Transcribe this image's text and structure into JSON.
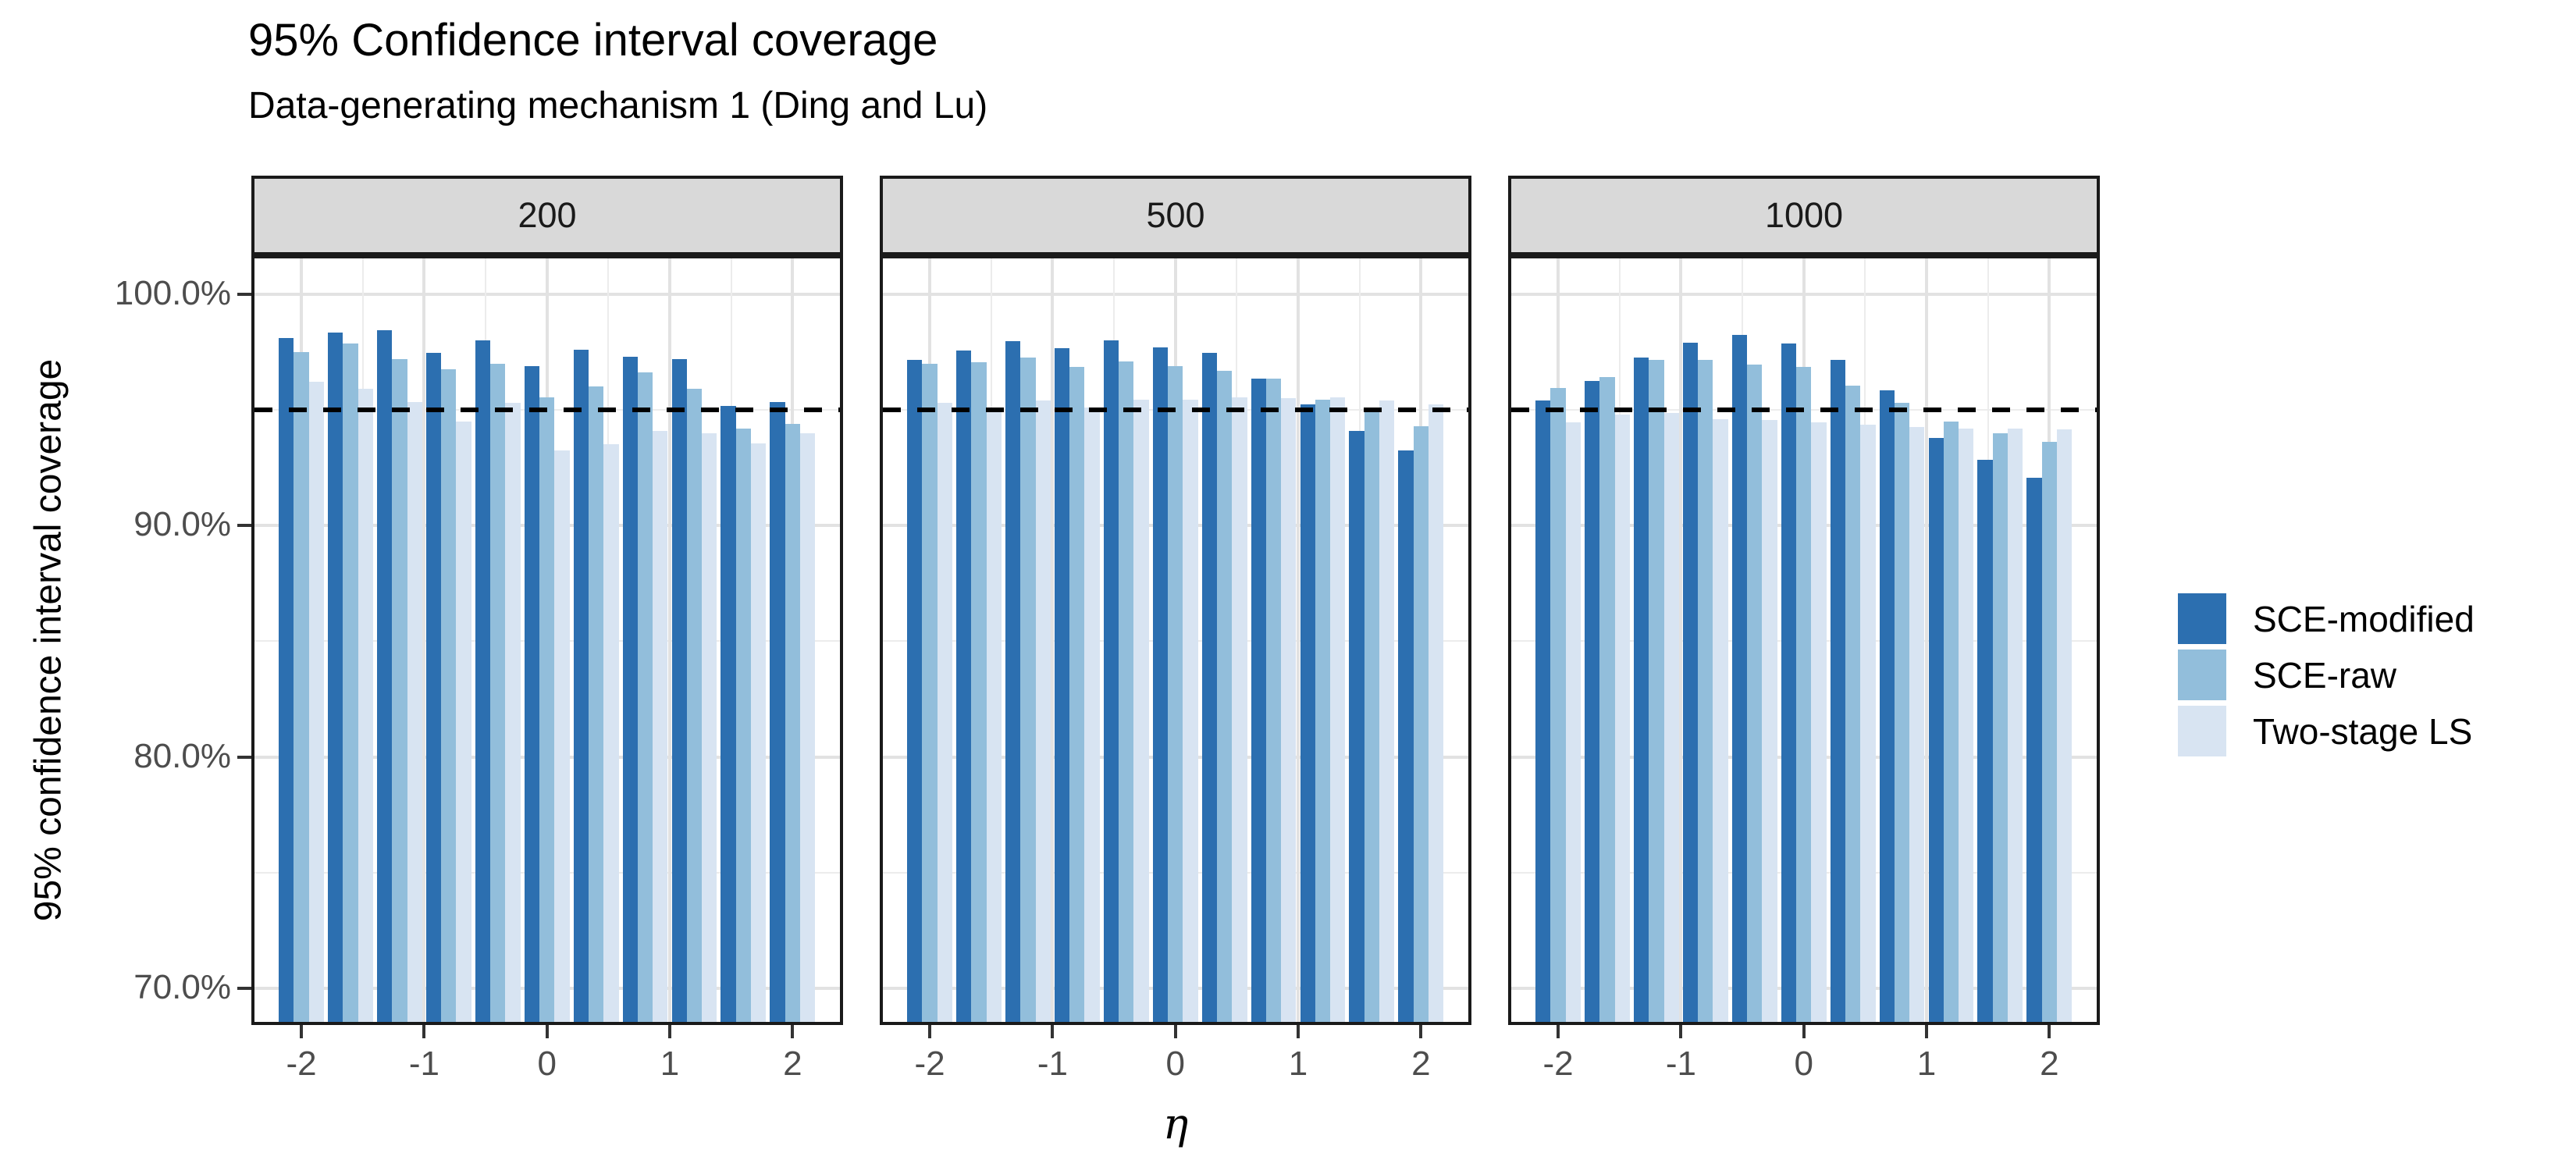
{
  "chart_data": {
    "type": "bar",
    "title": "95% Confidence interval coverage",
    "subtitle": "Data-generating mechanism 1 (Ding and Lu)",
    "xlabel": "η",
    "ylabel": "95% confidence interval coverage",
    "legend_position": "right",
    "grid": true,
    "facet_variable_values": [
      "200",
      "500",
      "1000"
    ],
    "x": [
      -2,
      -1.6,
      -1.2,
      -0.8,
      -0.4,
      0,
      0.4,
      0.8,
      1.2,
      1.6,
      2
    ],
    "x_tick_values": [
      -2,
      -1,
      0,
      1,
      2
    ],
    "x_tick_labels": [
      "-2",
      "-1",
      "0",
      "1",
      "2"
    ],
    "x_minor_values": [
      -1.5,
      -0.5,
      0.5,
      1.5
    ],
    "y_tick_values": [
      100,
      90,
      80,
      70
    ],
    "y_tick_labels": [
      "100.0%",
      "90.0%",
      "80.0%",
      "70.0%"
    ],
    "y_minor_values": [
      95,
      85,
      75
    ],
    "ylim": [
      68.6,
      101.5
    ],
    "reference_line": 95,
    "series_names": [
      "SCE-modified",
      "SCE-raw",
      "Two-stage LS"
    ],
    "series_colors": [
      "#2c6fb0",
      "#92bedb",
      "#d8e4f2"
    ],
    "facets": [
      {
        "label": "200",
        "values": [
          [
            98.1,
            98.35,
            98.45,
            97.45,
            98.0,
            96.9,
            97.6,
            97.3,
            97.2,
            95.15,
            95.35
          ],
          [
            97.5,
            97.85,
            97.2,
            96.75,
            97.0,
            95.55,
            96.0,
            96.6,
            95.9,
            94.2,
            94.4
          ],
          [
            96.2,
            95.9,
            95.35,
            94.5,
            95.3,
            93.25,
            93.5,
            94.1,
            94.0,
            93.55,
            94.0
          ]
        ]
      },
      {
        "label": "500",
        "values": [
          [
            97.15,
            97.55,
            97.95,
            97.65,
            98.0,
            97.7,
            97.45,
            96.35,
            95.25,
            94.1,
            93.25
          ],
          [
            97.0,
            97.05,
            97.25,
            96.85,
            97.1,
            96.9,
            96.7,
            96.35,
            95.45,
            94.9,
            94.3
          ],
          [
            95.3,
            94.95,
            95.4,
            95.1,
            95.45,
            95.45,
            95.55,
            95.5,
            95.55,
            95.4,
            95.25
          ]
        ]
      },
      {
        "label": "1000",
        "values": [
          [
            95.4,
            96.25,
            97.25,
            97.9,
            98.25,
            97.85,
            97.15,
            95.85,
            93.8,
            92.85,
            92.05
          ],
          [
            95.95,
            96.4,
            97.15,
            97.15,
            96.95,
            96.85,
            96.05,
            95.3,
            94.5,
            94.0,
            93.6
          ],
          [
            94.45,
            94.8,
            94.85,
            94.6,
            94.55,
            94.45,
            94.35,
            94.25,
            94.2,
            94.2,
            94.15
          ]
        ]
      }
    ],
    "colors": {
      "strip_background": "#d9d9d9",
      "panel_border": "#1a1a1a",
      "grid_major": "#e2e2e2",
      "grid_minor": "#ececec",
      "tick_text": "#4d4d4d",
      "reference_line": "#000000"
    }
  }
}
